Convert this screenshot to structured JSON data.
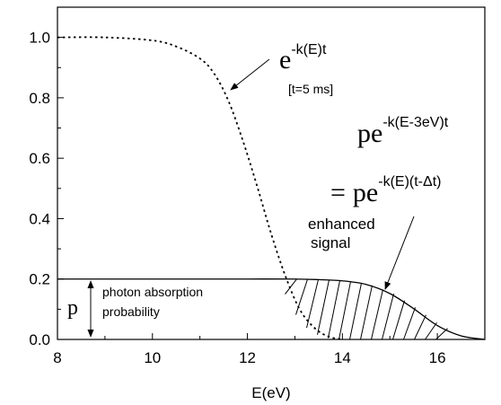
{
  "chart_data": {
    "type": "line",
    "title": "",
    "xlabel": "E(eV)",
    "ylabel": "",
    "xlim": [
      8,
      17
    ],
    "ylim": [
      0,
      1.1
    ],
    "x_ticks": [
      8,
      10,
      12,
      14,
      16
    ],
    "x_tick_labels": [
      "8",
      "10",
      "12",
      "14",
      "16"
    ],
    "y_ticks": [
      0.0,
      0.2,
      0.4,
      0.6,
      0.8,
      1.0
    ],
    "y_tick_labels": [
      "0.0",
      "0.2",
      "0.4",
      "0.6",
      "0.8",
      "1.0"
    ],
    "grid": false,
    "legend": "none",
    "series": [
      {
        "style": "dotted",
        "x": [
          8.0,
          9.0,
          10.0,
          10.5,
          11.0,
          11.3,
          11.6,
          11.9,
          12.2,
          12.5,
          12.8,
          13.1,
          13.4,
          13.7,
          14.0
        ],
        "y": [
          1.0,
          1.0,
          0.99,
          0.97,
          0.93,
          0.88,
          0.79,
          0.66,
          0.51,
          0.35,
          0.21,
          0.1,
          0.04,
          0.01,
          0.0
        ]
      },
      {
        "style": "solid",
        "x": [
          8.0,
          9.0,
          10.0,
          11.0,
          12.0,
          13.0,
          13.5,
          14.0,
          14.5,
          15.0,
          15.5,
          16.0,
          16.5,
          17.0
        ],
        "y": [
          0.2,
          0.2,
          0.2,
          0.2,
          0.2,
          0.2,
          0.198,
          0.194,
          0.182,
          0.152,
          0.102,
          0.046,
          0.012,
          0.0
        ]
      }
    ],
    "shaded_region": {
      "pattern": "hatched",
      "x_from": 12.85,
      "x_to": 16.2,
      "between": "dotted curve and solid curve"
    },
    "annotations": {
      "exp_main": "e",
      "exp_main_power": "-k(E)t",
      "time_note": "[t=5 ms]",
      "pe_base": "pe",
      "pe_power_1": "-k(E-3eV)t",
      "pe_equals": "=",
      "pe_power_2": "-k(E)(t-Δt)",
      "enhanced_line1": "enhanced",
      "enhanced_line2": "signal",
      "p_symbol": "p",
      "absorption_line1": "photon absorption",
      "absorption_line2": "probability"
    }
  }
}
